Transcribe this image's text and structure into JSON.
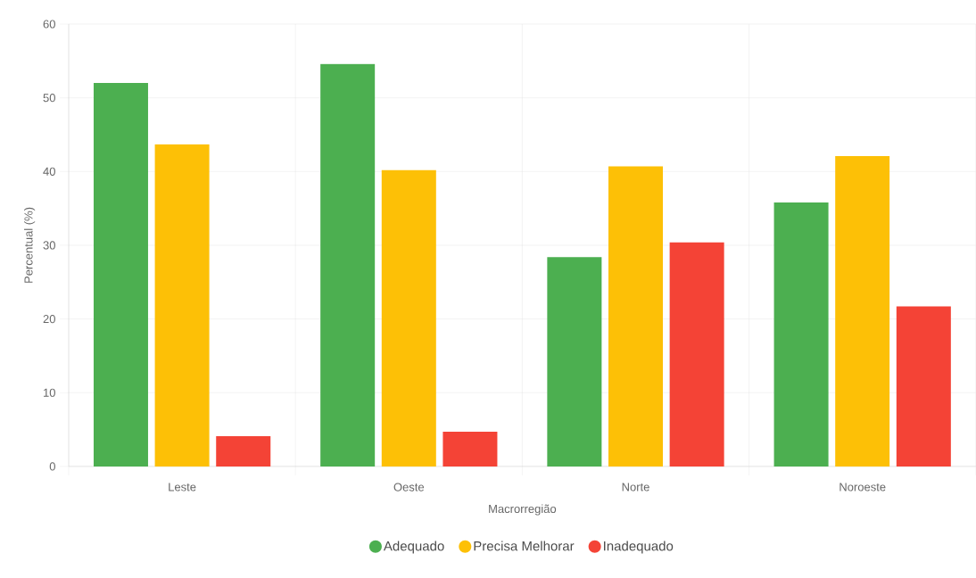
{
  "chart_data": {
    "type": "bar",
    "xlabel": "Macrorregião",
    "ylabel": "Percentual (%)",
    "categories": [
      "Leste",
      "Oeste",
      "Norte",
      "Noroeste"
    ],
    "series": [
      {
        "name": "Adequado",
        "color": "#4caf50",
        "values": [
          52.0,
          54.6,
          28.4,
          35.8
        ]
      },
      {
        "name": "Precisa Melhorar",
        "color": "#fdc006",
        "values": [
          43.7,
          40.2,
          40.7,
          42.1
        ]
      },
      {
        "name": "Inadequado",
        "color": "#f44336",
        "values": [
          4.1,
          4.7,
          30.4,
          21.7
        ]
      }
    ],
    "ylim": [
      0,
      60
    ],
    "yticks": [
      0,
      10,
      20,
      30,
      40,
      50,
      60
    ],
    "grid": true,
    "legend": "bottom"
  }
}
